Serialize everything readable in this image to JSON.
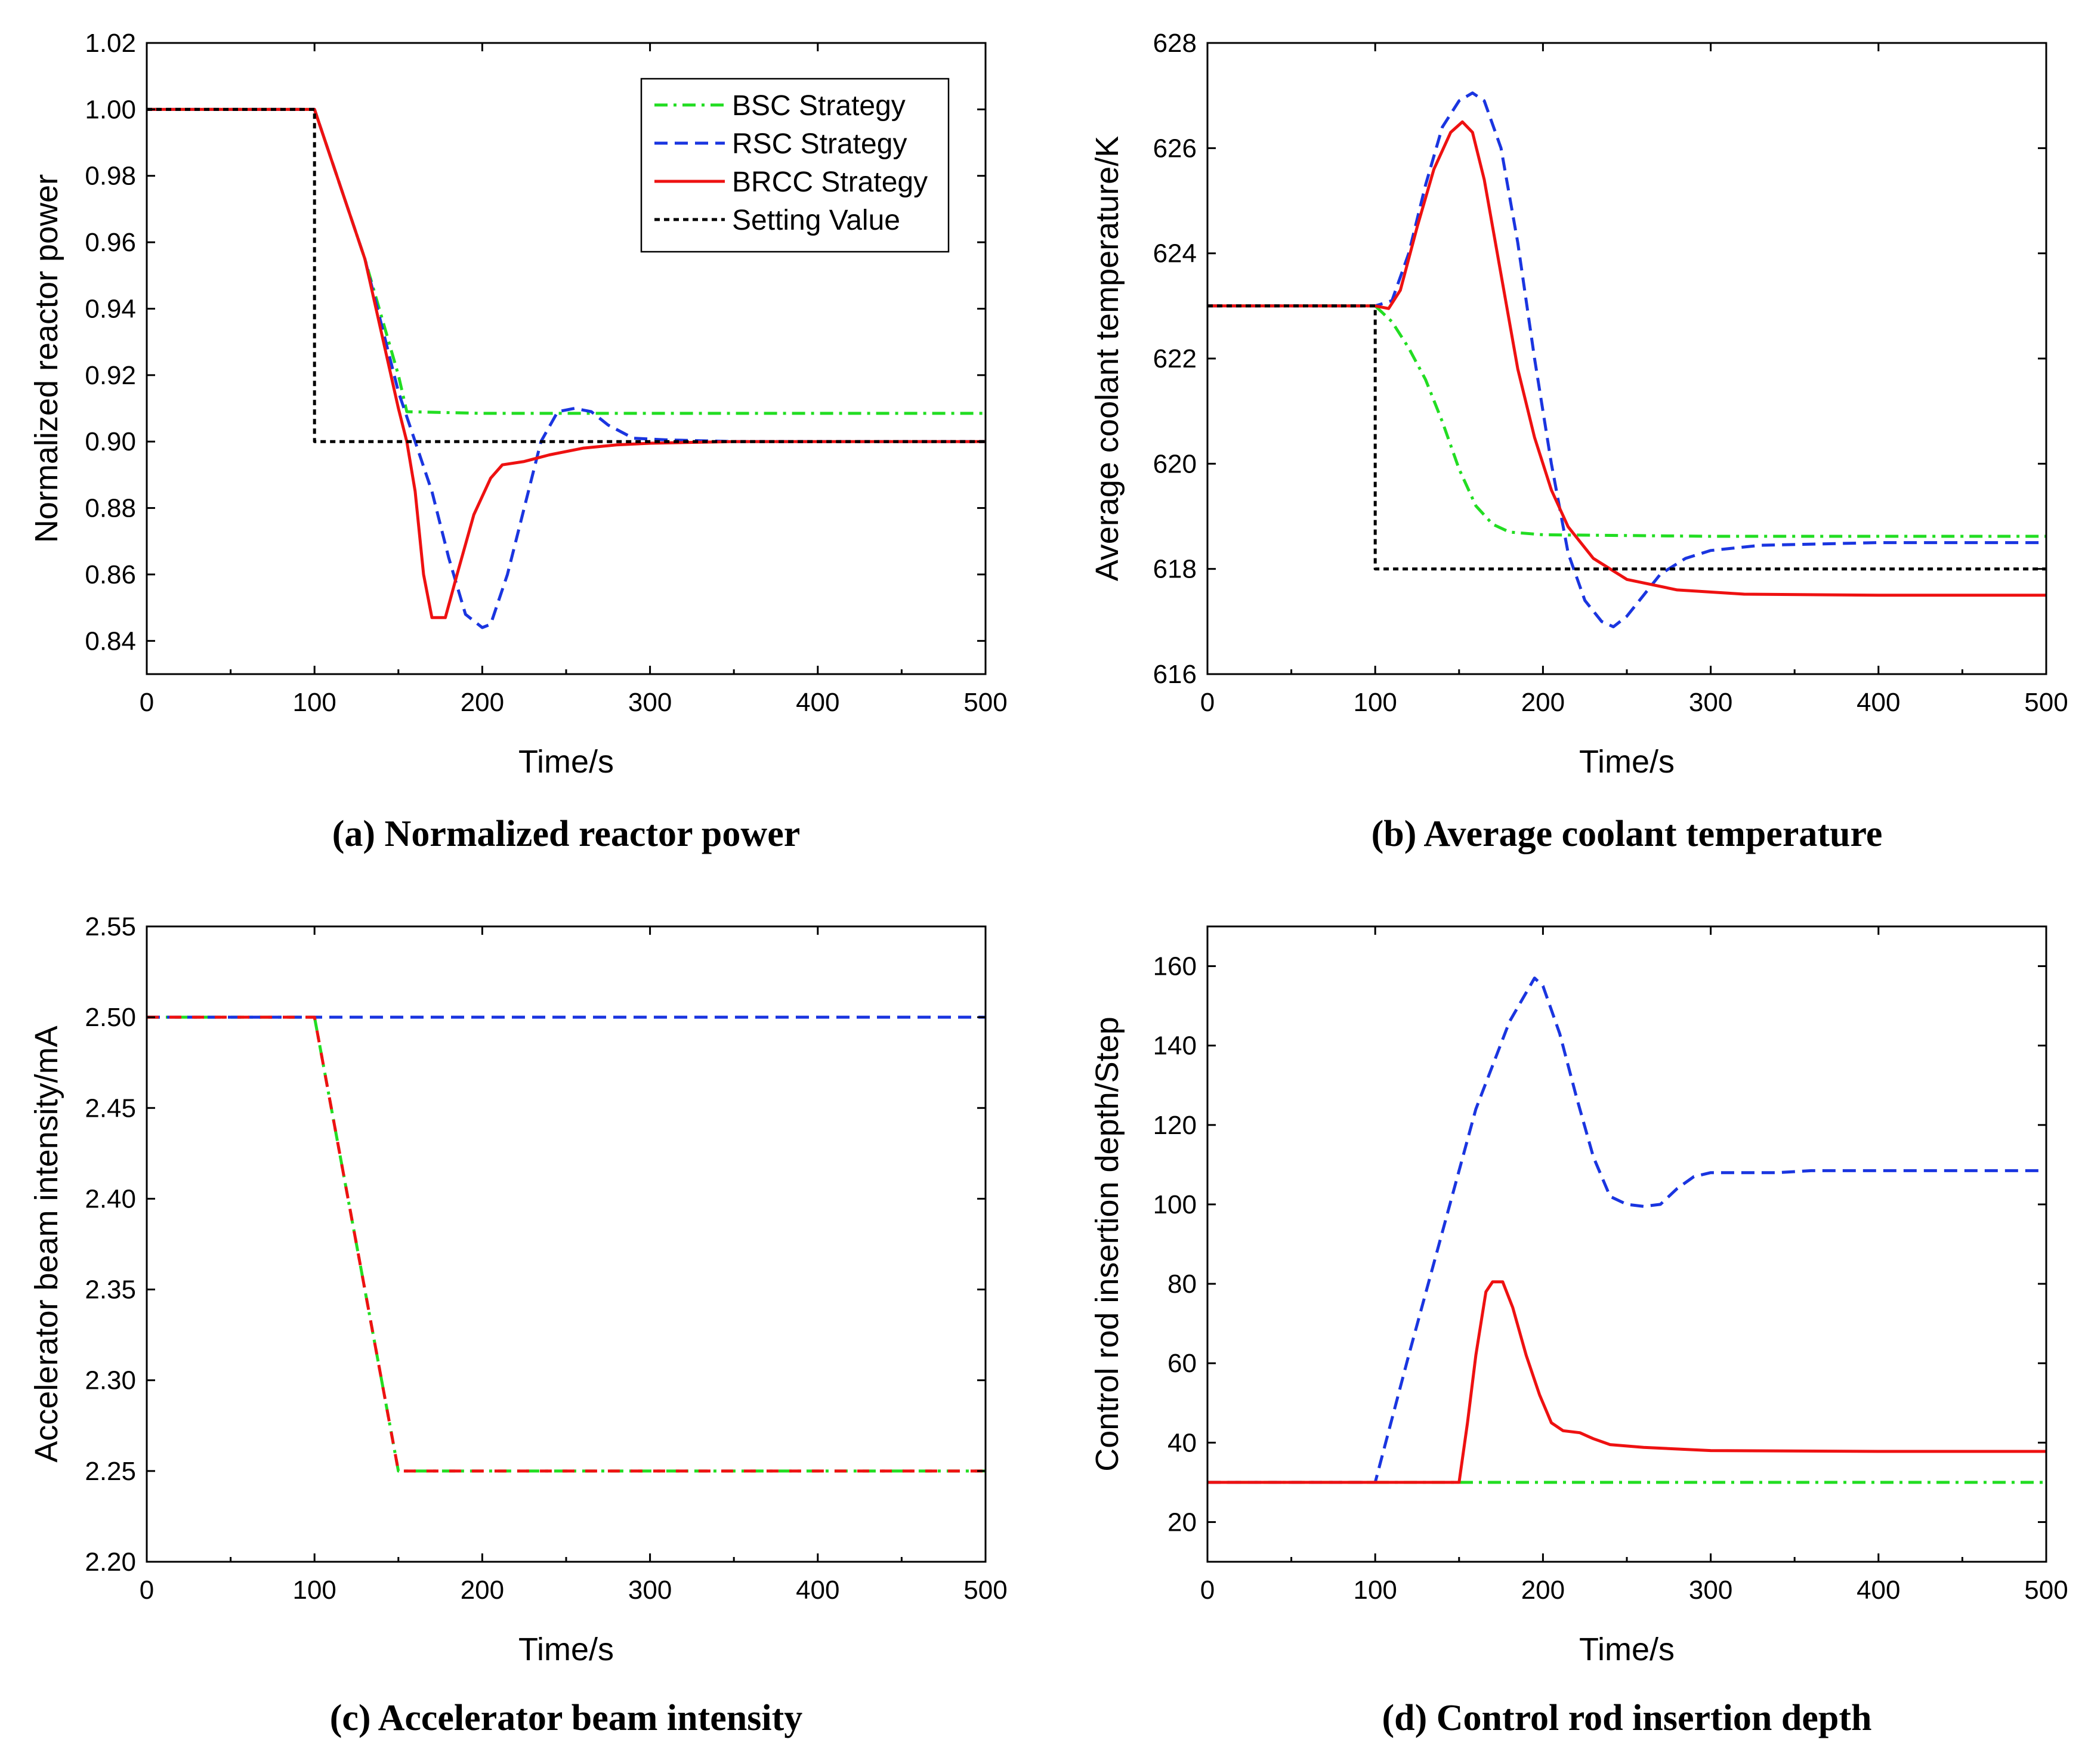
{
  "chart_data": [
    {
      "id": "a",
      "type": "line",
      "caption": "(a) Normalized reactor power",
      "xlabel": "Time/s",
      "ylabel": "Normalized reactor power",
      "xlim": [
        0,
        500
      ],
      "ylim": [
        0.83,
        1.02
      ],
      "xticks": [
        0,
        100,
        200,
        300,
        400,
        500
      ],
      "yticks": [
        0.84,
        0.86,
        0.88,
        0.9,
        0.92,
        0.94,
        0.96,
        0.98,
        1.0,
        1.02
      ],
      "ytick_labels": [
        "0.84",
        "0.86",
        "0.88",
        "0.90",
        "0.92",
        "0.94",
        "0.96",
        "0.98",
        "1.00",
        "1.02"
      ],
      "legend": [
        "BSC Strategy",
        "RSC Strategy",
        "BRCC Strategy",
        "Setting Value"
      ],
      "legend_position": "top-right",
      "series": [
        {
          "name": "BSC Strategy",
          "color": "#22dd22",
          "dash": "dashdot",
          "points": [
            [
              0,
              1.0
            ],
            [
              100,
              1.0
            ],
            [
              110,
              0.985
            ],
            [
              130,
              0.955
            ],
            [
              150,
              0.92
            ],
            [
              155,
              0.909
            ],
            [
              200,
              0.9085
            ],
            [
              300,
              0.9085
            ],
            [
              400,
              0.9085
            ],
            [
              500,
              0.9085
            ]
          ]
        },
        {
          "name": "RSC Strategy",
          "color": "#1a35e0",
          "dash": "dashed",
          "points": [
            [
              0,
              1.0
            ],
            [
              100,
              1.0
            ],
            [
              110,
              0.985
            ],
            [
              130,
              0.955
            ],
            [
              150,
              0.915
            ],
            [
              160,
              0.9
            ],
            [
              170,
              0.885
            ],
            [
              180,
              0.865
            ],
            [
              190,
              0.848
            ],
            [
              200,
              0.844
            ],
            [
              205,
              0.845
            ],
            [
              215,
              0.86
            ],
            [
              225,
              0.88
            ],
            [
              235,
              0.9
            ],
            [
              245,
              0.909
            ],
            [
              255,
              0.91
            ],
            [
              265,
              0.909
            ],
            [
              275,
              0.905
            ],
            [
              290,
              0.901
            ],
            [
              310,
              0.9005
            ],
            [
              350,
              0.9
            ],
            [
              400,
              0.9
            ],
            [
              500,
              0.9
            ]
          ]
        },
        {
          "name": "BRCC Strategy",
          "color": "#ee1111",
          "dash": "solid",
          "points": [
            [
              0,
              1.0
            ],
            [
              100,
              1.0
            ],
            [
              110,
              0.985
            ],
            [
              130,
              0.955
            ],
            [
              150,
              0.91
            ],
            [
              155,
              0.9
            ],
            [
              160,
              0.885
            ],
            [
              165,
              0.86
            ],
            [
              170,
              0.847
            ],
            [
              178,
              0.847
            ],
            [
              185,
              0.86
            ],
            [
              195,
              0.878
            ],
            [
              205,
              0.889
            ],
            [
              212,
              0.893
            ],
            [
              225,
              0.894
            ],
            [
              240,
              0.896
            ],
            [
              260,
              0.898
            ],
            [
              280,
              0.899
            ],
            [
              300,
              0.8995
            ],
            [
              350,
              0.9
            ],
            [
              500,
              0.9
            ]
          ]
        },
        {
          "name": "Setting Value",
          "color": "#000000",
          "dash": "dotted",
          "points": [
            [
              0,
              1.0
            ],
            [
              100,
              1.0
            ],
            [
              100,
              0.9
            ],
            [
              500,
              0.9
            ]
          ]
        }
      ]
    },
    {
      "id": "b",
      "type": "line",
      "caption": "(b) Average coolant temperature",
      "xlabel": "Time/s",
      "ylabel": "Average coolant temperature/K",
      "xlim": [
        0,
        500
      ],
      "ylim": [
        616,
        628
      ],
      "xticks": [
        0,
        100,
        200,
        300,
        400,
        500
      ],
      "yticks": [
        616,
        618,
        620,
        622,
        624,
        626,
        628
      ],
      "ytick_labels": [
        "616",
        "618",
        "620",
        "622",
        "624",
        "626",
        "628"
      ],
      "series": [
        {
          "name": "BSC Strategy",
          "color": "#22dd22",
          "dash": "dashdot",
          "points": [
            [
              0,
              623.0
            ],
            [
              100,
              623.0
            ],
            [
              110,
              622.7
            ],
            [
              120,
              622.2
            ],
            [
              130,
              621.6
            ],
            [
              140,
              620.8
            ],
            [
              150,
              619.9
            ],
            [
              160,
              619.2
            ],
            [
              170,
              618.85
            ],
            [
              180,
              618.7
            ],
            [
              200,
              618.65
            ],
            [
              300,
              618.62
            ],
            [
              400,
              618.62
            ],
            [
              500,
              618.62
            ]
          ]
        },
        {
          "name": "RSC Strategy",
          "color": "#1a35e0",
          "dash": "dashed",
          "points": [
            [
              0,
              623.0
            ],
            [
              100,
              623.0
            ],
            [
              110,
              623.1
            ],
            [
              120,
              624.0
            ],
            [
              130,
              625.3
            ],
            [
              140,
              626.4
            ],
            [
              150,
              626.9
            ],
            [
              158,
              627.05
            ],
            [
              165,
              626.9
            ],
            [
              175,
              626.0
            ],
            [
              185,
              624.2
            ],
            [
              195,
              622.0
            ],
            [
              205,
              620.0
            ],
            [
              215,
              618.3
            ],
            [
              225,
              617.4
            ],
            [
              235,
              617.0
            ],
            [
              242,
              616.9
            ],
            [
              250,
              617.1
            ],
            [
              260,
              617.5
            ],
            [
              270,
              617.9
            ],
            [
              285,
              618.2
            ],
            [
              300,
              618.35
            ],
            [
              330,
              618.45
            ],
            [
              400,
              618.5
            ],
            [
              500,
              618.5
            ]
          ]
        },
        {
          "name": "BRCC Strategy",
          "color": "#ee1111",
          "dash": "solid",
          "points": [
            [
              0,
              623.0
            ],
            [
              100,
              623.0
            ],
            [
              108,
              622.95
            ],
            [
              115,
              623.3
            ],
            [
              125,
              624.5
            ],
            [
              135,
              625.6
            ],
            [
              145,
              626.3
            ],
            [
              152,
              626.5
            ],
            [
              158,
              626.3
            ],
            [
              165,
              625.4
            ],
            [
              175,
              623.6
            ],
            [
              185,
              621.8
            ],
            [
              195,
              620.5
            ],
            [
              205,
              619.5
            ],
            [
              215,
              618.8
            ],
            [
              230,
              618.2
            ],
            [
              250,
              617.8
            ],
            [
              280,
              617.6
            ],
            [
              320,
              617.52
            ],
            [
              400,
              617.5
            ],
            [
              500,
              617.5
            ]
          ]
        },
        {
          "name": "Setting Value",
          "color": "#000000",
          "dash": "dotted",
          "points": [
            [
              0,
              623.0
            ],
            [
              100,
              623.0
            ],
            [
              100,
              618.0
            ],
            [
              500,
              618.0
            ]
          ]
        }
      ]
    },
    {
      "id": "c",
      "type": "line",
      "caption": "(c) Accelerator beam intensity",
      "xlabel": "Time/s",
      "ylabel": "Accelerator beam intensity/mA",
      "xlim": [
        0,
        500
      ],
      "ylim": [
        2.2,
        2.55
      ],
      "xticks": [
        0,
        100,
        200,
        300,
        400,
        500
      ],
      "yticks": [
        2.2,
        2.25,
        2.3,
        2.35,
        2.4,
        2.45,
        2.5,
        2.55
      ],
      "ytick_labels": [
        "2.20",
        "2.25",
        "2.30",
        "2.35",
        "2.40",
        "2.45",
        "2.50",
        "2.55"
      ],
      "series": [
        {
          "name": "BSC Strategy",
          "color": "#22dd22",
          "dash": "dashdot",
          "points": [
            [
              0,
              2.5
            ],
            [
              100,
              2.5
            ],
            [
              150,
              2.25
            ],
            [
              500,
              2.25
            ]
          ]
        },
        {
          "name": "RSC Strategy",
          "color": "#1a35e0",
          "dash": "dashed",
          "points": [
            [
              0,
              2.5
            ],
            [
              500,
              2.5
            ]
          ]
        },
        {
          "name": "BRCC Strategy",
          "color": "#ee1111",
          "dash": "dashed-overlay",
          "points": [
            [
              0,
              2.5
            ],
            [
              100,
              2.5
            ],
            [
              150,
              2.25
            ],
            [
              500,
              2.25
            ]
          ]
        }
      ]
    },
    {
      "id": "d",
      "type": "line",
      "caption": "(d) Control rod insertion depth",
      "xlabel": "Time/s",
      "ylabel": "Control rod insertion depth/Step",
      "xlim": [
        0,
        500
      ],
      "ylim": [
        10,
        170
      ],
      "xticks": [
        0,
        100,
        200,
        300,
        400,
        500
      ],
      "yticks": [
        20,
        40,
        60,
        80,
        100,
        120,
        140,
        160
      ],
      "ytick_labels": [
        "20",
        "40",
        "60",
        "80",
        "100",
        "120",
        "140",
        "160"
      ],
      "series": [
        {
          "name": "BSC Strategy",
          "color": "#22dd22",
          "dash": "dashdot",
          "points": [
            [
              0,
              30
            ],
            [
              500,
              30
            ]
          ]
        },
        {
          "name": "RSC Strategy",
          "color": "#1a35e0",
          "dash": "dashed",
          "points": [
            [
              0,
              30
            ],
            [
              100,
              30
            ],
            [
              120,
              62
            ],
            [
              140,
              93
            ],
            [
              160,
              124
            ],
            [
              180,
              146
            ],
            [
              195,
              157
            ],
            [
              200,
              155
            ],
            [
              210,
              143
            ],
            [
              220,
              127
            ],
            [
              230,
              112
            ],
            [
              240,
              102
            ],
            [
              250,
              100
            ],
            [
              260,
              99.5
            ],
            [
              270,
              100
            ],
            [
              280,
              104
            ],
            [
              290,
              107
            ],
            [
              300,
              108
            ],
            [
              340,
              108
            ],
            [
              360,
              108.5
            ],
            [
              500,
              108.5
            ]
          ]
        },
        {
          "name": "BRCC Strategy",
          "color": "#ee1111",
          "dash": "solid",
          "points": [
            [
              0,
              30
            ],
            [
              150,
              30
            ],
            [
              155,
              45
            ],
            [
              160,
              62
            ],
            [
              166,
              78
            ],
            [
              170,
              80.5
            ],
            [
              176,
              80.5
            ],
            [
              182,
              74
            ],
            [
              190,
              62
            ],
            [
              198,
              52
            ],
            [
              205,
              45
            ],
            [
              212,
              43
            ],
            [
              222,
              42.5
            ],
            [
              230,
              41
            ],
            [
              240,
              39.5
            ],
            [
              260,
              38.8
            ],
            [
              300,
              38
            ],
            [
              400,
              37.8
            ],
            [
              500,
              37.8
            ]
          ]
        }
      ]
    }
  ]
}
